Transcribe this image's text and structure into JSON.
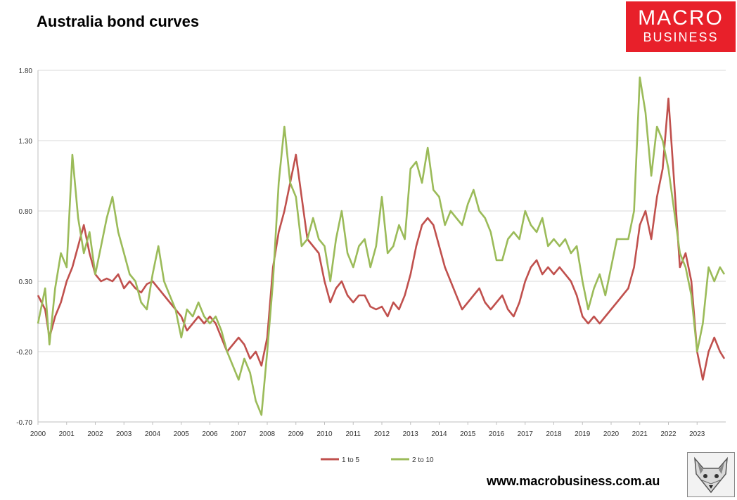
{
  "chart_data": {
    "type": "line",
    "title": "Australia bond curves",
    "xlabel": "",
    "ylabel": "",
    "ylim": [
      -0.7,
      1.8
    ],
    "yticks": [
      "-0.70",
      "-0.20",
      "0.30",
      "0.80",
      "1.30",
      "1.80"
    ],
    "xlim": [
      2000,
      2024
    ],
    "xticks": [
      "2000",
      "2001",
      "2002",
      "2003",
      "2004",
      "2005",
      "2006",
      "2007",
      "2008",
      "2009",
      "2010",
      "2011",
      "2012",
      "2013",
      "2014",
      "2015",
      "2016",
      "2017",
      "2018",
      "2019",
      "2020",
      "2021",
      "2022",
      "2023"
    ],
    "grid": true,
    "legend_position": "bottom",
    "series": [
      {
        "name": "1 to 5",
        "color": "#c0504d",
        "x": [
          2000.0,
          2000.25,
          2000.4,
          2000.6,
          2000.8,
          2001.0,
          2001.2,
          2001.4,
          2001.6,
          2001.8,
          2002.0,
          2002.2,
          2002.4,
          2002.6,
          2002.8,
          2003.0,
          2003.2,
          2003.4,
          2003.6,
          2003.8,
          2004.0,
          2004.2,
          2004.4,
          2004.6,
          2004.8,
          2005.0,
          2005.2,
          2005.4,
          2005.6,
          2005.8,
          2006.0,
          2006.2,
          2006.4,
          2006.6,
          2006.8,
          2007.0,
          2007.2,
          2007.4,
          2007.6,
          2007.8,
          2008.0,
          2008.2,
          2008.4,
          2008.6,
          2008.8,
          2009.0,
          2009.2,
          2009.4,
          2009.6,
          2009.8,
          2010.0,
          2010.2,
          2010.4,
          2010.6,
          2010.8,
          2011.0,
          2011.2,
          2011.4,
          2011.6,
          2011.8,
          2012.0,
          2012.2,
          2012.4,
          2012.6,
          2012.8,
          2013.0,
          2013.2,
          2013.4,
          2013.6,
          2013.8,
          2014.0,
          2014.2,
          2014.4,
          2014.6,
          2014.8,
          2015.0,
          2015.2,
          2015.4,
          2015.6,
          2015.8,
          2016.0,
          2016.2,
          2016.4,
          2016.6,
          2016.8,
          2017.0,
          2017.2,
          2017.4,
          2017.6,
          2017.8,
          2018.0,
          2018.2,
          2018.4,
          2018.6,
          2018.8,
          2019.0,
          2019.2,
          2019.4,
          2019.6,
          2019.8,
          2020.0,
          2020.2,
          2020.4,
          2020.6,
          2020.8,
          2021.0,
          2021.2,
          2021.4,
          2021.6,
          2021.8,
          2022.0,
          2022.2,
          2022.4,
          2022.6,
          2022.8,
          2023.0,
          2023.2,
          2023.4,
          2023.6,
          2023.8,
          2023.95
        ],
        "values": [
          0.2,
          0.1,
          -0.1,
          0.05,
          0.15,
          0.3,
          0.4,
          0.55,
          0.7,
          0.5,
          0.35,
          0.3,
          0.32,
          0.3,
          0.35,
          0.25,
          0.3,
          0.25,
          0.22,
          0.28,
          0.3,
          0.25,
          0.2,
          0.15,
          0.1,
          0.05,
          -0.05,
          0.0,
          0.05,
          0.0,
          0.05,
          0.0,
          -0.1,
          -0.2,
          -0.15,
          -0.1,
          -0.15,
          -0.25,
          -0.2,
          -0.3,
          -0.1,
          0.4,
          0.65,
          0.8,
          1.0,
          1.2,
          0.9,
          0.6,
          0.55,
          0.5,
          0.3,
          0.15,
          0.25,
          0.3,
          0.2,
          0.15,
          0.2,
          0.2,
          0.12,
          0.1,
          0.12,
          0.05,
          0.15,
          0.1,
          0.2,
          0.35,
          0.55,
          0.7,
          0.75,
          0.7,
          0.55,
          0.4,
          0.3,
          0.2,
          0.1,
          0.15,
          0.2,
          0.25,
          0.15,
          0.1,
          0.15,
          0.2,
          0.1,
          0.05,
          0.15,
          0.3,
          0.4,
          0.45,
          0.35,
          0.4,
          0.35,
          0.4,
          0.35,
          0.3,
          0.2,
          0.05,
          0.0,
          0.05,
          0.0,
          0.05,
          0.1,
          0.15,
          0.2,
          0.25,
          0.4,
          0.7,
          0.8,
          0.6,
          0.9,
          1.1,
          1.6,
          1.0,
          0.4,
          0.5,
          0.3,
          -0.2,
          -0.4,
          -0.2,
          -0.1,
          -0.2,
          -0.25
        ]
      },
      {
        "name": "2 to 10",
        "color": "#9bbb59",
        "x": [
          2000.0,
          2000.25,
          2000.4,
          2000.6,
          2000.8,
          2001.0,
          2001.2,
          2001.4,
          2001.6,
          2001.8,
          2002.0,
          2002.2,
          2002.4,
          2002.6,
          2002.8,
          2003.0,
          2003.2,
          2003.4,
          2003.6,
          2003.8,
          2004.0,
          2004.2,
          2004.4,
          2004.6,
          2004.8,
          2005.0,
          2005.2,
          2005.4,
          2005.6,
          2005.8,
          2006.0,
          2006.2,
          2006.4,
          2006.6,
          2006.8,
          2007.0,
          2007.2,
          2007.4,
          2007.6,
          2007.8,
          2008.0,
          2008.2,
          2008.4,
          2008.6,
          2008.8,
          2009.0,
          2009.2,
          2009.4,
          2009.6,
          2009.8,
          2010.0,
          2010.2,
          2010.4,
          2010.6,
          2010.8,
          2011.0,
          2011.2,
          2011.4,
          2011.6,
          2011.8,
          2012.0,
          2012.2,
          2012.4,
          2012.6,
          2012.8,
          2013.0,
          2013.2,
          2013.4,
          2013.6,
          2013.8,
          2014.0,
          2014.2,
          2014.4,
          2014.6,
          2014.8,
          2015.0,
          2015.2,
          2015.4,
          2015.6,
          2015.8,
          2016.0,
          2016.2,
          2016.4,
          2016.6,
          2016.8,
          2017.0,
          2017.2,
          2017.4,
          2017.6,
          2017.8,
          2018.0,
          2018.2,
          2018.4,
          2018.6,
          2018.8,
          2019.0,
          2019.2,
          2019.4,
          2019.6,
          2019.8,
          2020.0,
          2020.2,
          2020.4,
          2020.6,
          2020.8,
          2021.0,
          2021.2,
          2021.4,
          2021.6,
          2021.8,
          2022.0,
          2022.2,
          2022.4,
          2022.6,
          2022.8,
          2023.0,
          2023.2,
          2023.4,
          2023.6,
          2023.8,
          2023.95
        ],
        "values": [
          0.0,
          0.25,
          -0.15,
          0.25,
          0.5,
          0.4,
          1.2,
          0.75,
          0.5,
          0.65,
          0.35,
          0.55,
          0.75,
          0.9,
          0.65,
          0.5,
          0.35,
          0.3,
          0.15,
          0.1,
          0.35,
          0.55,
          0.3,
          0.2,
          0.1,
          -0.1,
          0.1,
          0.05,
          0.15,
          0.05,
          0.0,
          0.05,
          -0.05,
          -0.2,
          -0.3,
          -0.4,
          -0.25,
          -0.35,
          -0.55,
          -0.65,
          -0.2,
          0.3,
          1.0,
          1.4,
          1.0,
          0.9,
          0.55,
          0.6,
          0.75,
          0.6,
          0.55,
          0.3,
          0.6,
          0.8,
          0.5,
          0.4,
          0.55,
          0.6,
          0.4,
          0.55,
          0.9,
          0.5,
          0.55,
          0.7,
          0.6,
          1.1,
          1.15,
          1.0,
          1.25,
          0.95,
          0.9,
          0.7,
          0.8,
          0.75,
          0.7,
          0.85,
          0.95,
          0.8,
          0.75,
          0.65,
          0.45,
          0.45,
          0.6,
          0.65,
          0.6,
          0.8,
          0.7,
          0.65,
          0.75,
          0.55,
          0.6,
          0.55,
          0.6,
          0.5,
          0.55,
          0.3,
          0.1,
          0.25,
          0.35,
          0.2,
          0.4,
          0.6,
          0.6,
          0.6,
          0.8,
          1.75,
          1.5,
          1.05,
          1.4,
          1.3,
          1.1,
          0.8,
          0.5,
          0.4,
          0.2,
          -0.2,
          0.0,
          0.4,
          0.3,
          0.4,
          0.35
        ]
      }
    ]
  },
  "branding": {
    "logo_line1": "MACRO",
    "logo_line2": "BUSINESS",
    "website": "www.macrobusiness.com.au"
  },
  "colors": {
    "logo_bg": "#e8202a",
    "grid": "#d9d9d9"
  }
}
